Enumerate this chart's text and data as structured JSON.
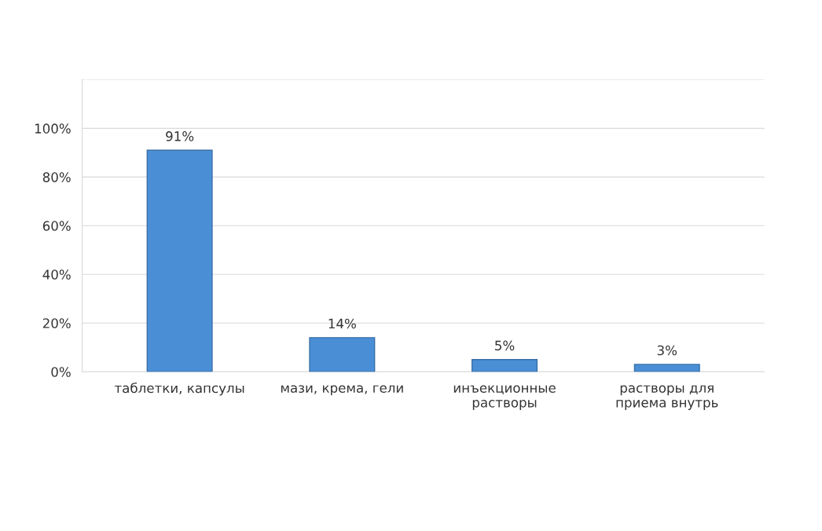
{
  "chart_data": {
    "type": "bar",
    "categories": [
      "таблетки, капсулы",
      "мази, крема, гели",
      "инъекционные\nрастворы",
      "растворы для\nприема внутрь"
    ],
    "values": [
      91,
      14,
      5,
      3
    ],
    "value_labels": [
      "91%",
      "14%",
      "5%",
      "3%"
    ],
    "color": "#4a8fd6",
    "ylim": [
      0,
      120
    ],
    "yticks": [
      {
        "value": 0,
        "label": "0%"
      },
      {
        "value": 20,
        "label": "20%"
      },
      {
        "value": 40,
        "label": "40%"
      },
      {
        "value": 60,
        "label": "60%"
      },
      {
        "value": 80,
        "label": "80%"
      },
      {
        "value": 100,
        "label": "100%"
      },
      {
        "value": 120,
        "label": null
      }
    ],
    "grid": "y"
  }
}
